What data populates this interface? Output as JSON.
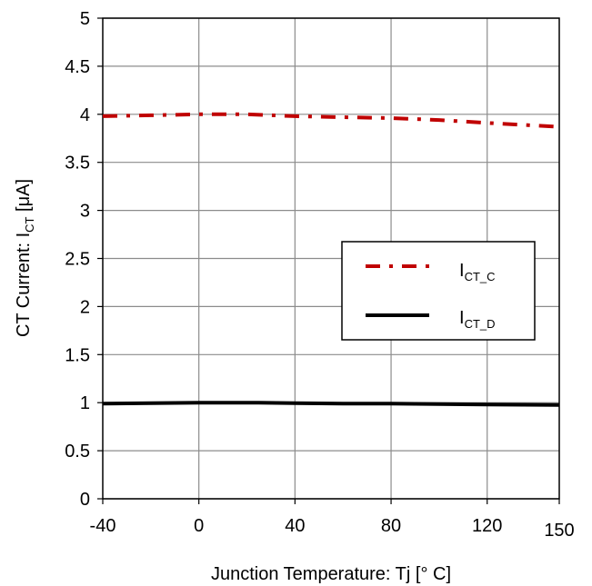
{
  "chart_data": {
    "type": "line",
    "xlabel": "Junction Temperature: Tj [° C]",
    "ylabel_prefix": "CT Current: I",
    "ylabel_sub": "CT",
    "ylabel_suffix": " [μA]",
    "xlim": [
      -40,
      150
    ],
    "ylim": [
      0,
      5
    ],
    "x_ticks": [
      -40,
      0,
      40,
      80,
      120,
      150
    ],
    "x_tick_labels": [
      "-40",
      "0",
      "40",
      "80",
      "120",
      "150"
    ],
    "y_ticks": [
      0,
      0.5,
      1,
      1.5,
      2,
      2.5,
      3,
      3.5,
      4,
      4.5,
      5
    ],
    "y_tick_labels": [
      "0",
      "0.5",
      "1",
      "1.5",
      "2",
      "2.5",
      "3",
      "3.5",
      "4",
      "4.5",
      "5"
    ],
    "grid": true,
    "legend_position": "middle-right",
    "series": [
      {
        "name_main": "I",
        "name_sub": "CT_C",
        "color": "#c00000",
        "style": "dash-dot",
        "x": [
          -40,
          -20,
          0,
          20,
          40,
          60,
          80,
          100,
          120,
          150
        ],
        "y": [
          3.98,
          3.99,
          4.0,
          4.0,
          3.98,
          3.97,
          3.96,
          3.94,
          3.91,
          3.87
        ]
      },
      {
        "name_main": "I",
        "name_sub": "CT_D",
        "color": "#000000",
        "style": "solid",
        "x": [
          -40,
          -20,
          0,
          25,
          40,
          60,
          80,
          100,
          120,
          150
        ],
        "y": [
          0.99,
          0.995,
          1.0,
          1.0,
          0.995,
          0.99,
          0.99,
          0.985,
          0.98,
          0.975
        ]
      }
    ]
  }
}
